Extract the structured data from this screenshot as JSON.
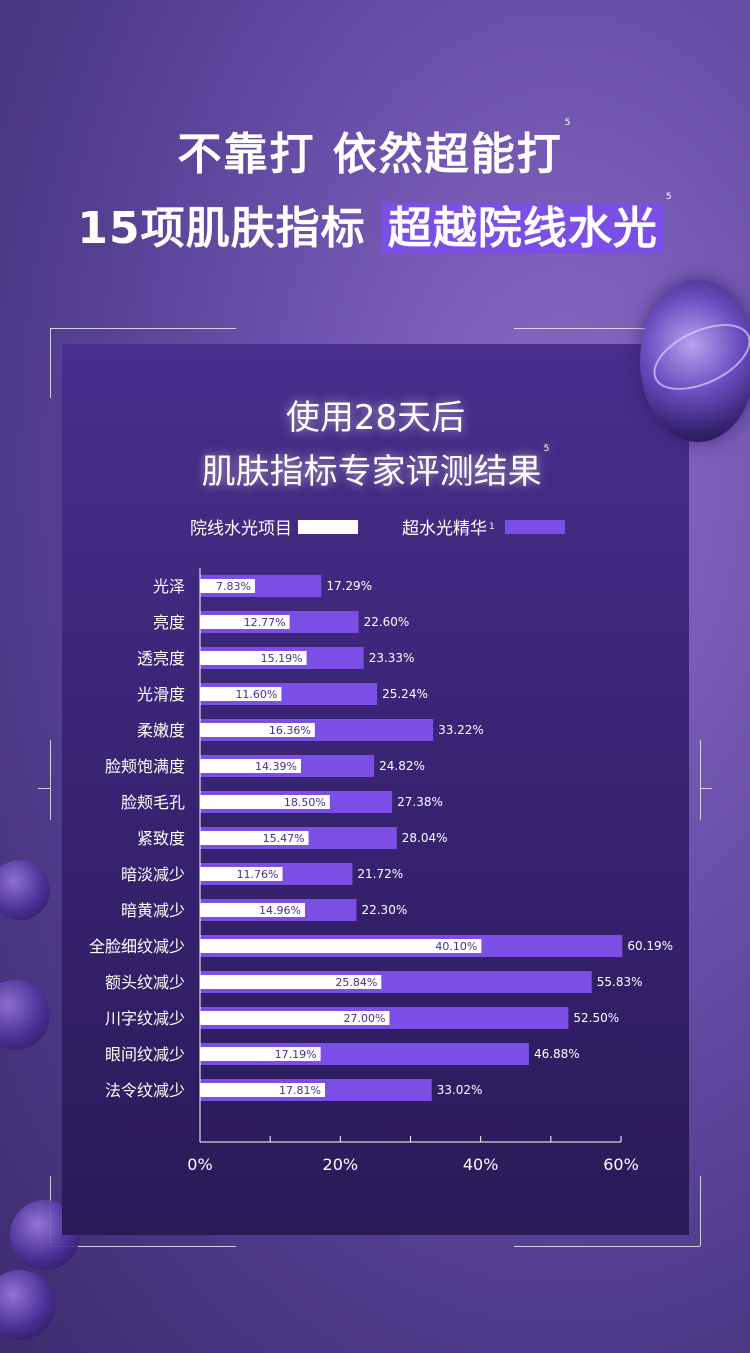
{
  "headline": {
    "line1": "不靠打 依然超能打",
    "line1_sup": "5",
    "line2_main": "15项肌肤指标",
    "line2_highlight": "超越院线水光",
    "line2_sup": "5"
  },
  "panel": {
    "title_line1": "使用28天后",
    "title_line2": "肌肤指标专家评测结果",
    "title_sup": "5"
  },
  "colors": {
    "accent": "#7b4fe6",
    "white_bar": "#ffffff",
    "background": "#5a3f99"
  },
  "chart_data": {
    "type": "bar",
    "orientation": "horizontal",
    "categories": [
      "光泽",
      "亮度",
      "透亮度",
      "光滑度",
      "柔嫩度",
      "脸颊饱满度",
      "脸颊毛孔",
      "紧致度",
      "暗淡减少",
      "暗黄减少",
      "全脸细纹减少",
      "额头纹减少",
      "川字纹减少",
      "眼间纹减少",
      "法令纹减少"
    ],
    "series": [
      {
        "name": "院线水光项目",
        "values": [
          7.83,
          12.77,
          15.19,
          11.6,
          16.36,
          14.39,
          18.5,
          15.47,
          11.76,
          14.96,
          40.1,
          25.84,
          27.0,
          17.19,
          17.81
        ],
        "labels": [
          "7.83%",
          "12.77%",
          "15.19%",
          "11.60%",
          "16.36%",
          "14.39%",
          "18.50%",
          "15.47%",
          "11.76%",
          "14.96%",
          "40.10%",
          "25.84%",
          "27.00%",
          "17.19%",
          "17.81%"
        ],
        "color": "#ffffff"
      },
      {
        "name": "超水光精华",
        "name_sup": "1",
        "values": [
          17.29,
          22.6,
          23.33,
          25.24,
          33.22,
          24.82,
          27.38,
          28.04,
          21.72,
          22.3,
          60.19,
          55.83,
          52.5,
          46.88,
          33.02
        ],
        "labels": [
          "17.29%",
          "22.60%",
          "23.33%",
          "25.24%",
          "33.22%",
          "24.82%",
          "27.38%",
          "28.04%",
          "21.72%",
          "22.30%",
          "60.19%",
          "55.83%",
          "52.50%",
          "46.88%",
          "33.02%"
        ],
        "color": "#7b4fe6"
      }
    ],
    "xticks": [
      "0%",
      "20%",
      "40%",
      "60%"
    ],
    "xlim": [
      0,
      60
    ],
    "legend": "top",
    "grid": false
  }
}
